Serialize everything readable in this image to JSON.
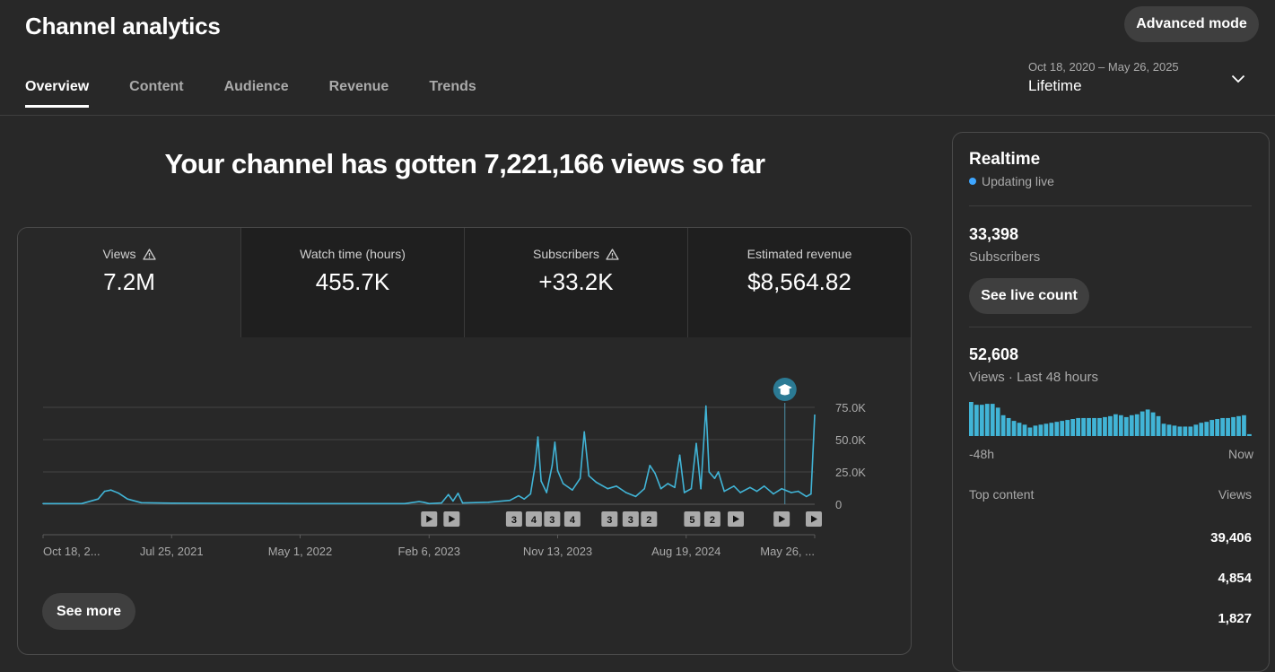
{
  "header": {
    "title": "Channel analytics",
    "advanced_mode_label": "Advanced mode",
    "tabs": [
      {
        "label": "Overview",
        "active": true
      },
      {
        "label": "Content",
        "active": false
      },
      {
        "label": "Audience",
        "active": false
      },
      {
        "label": "Revenue",
        "active": false
      },
      {
        "label": "Trends",
        "active": false
      }
    ],
    "date_range": {
      "range": "Oct 18, 2020 – May 26, 2025",
      "label": "Lifetime"
    }
  },
  "headline": "Your channel has gotten 7,221,166 views so far",
  "metrics": [
    {
      "label": "Views",
      "value": "7.2M",
      "warning": true,
      "active": true
    },
    {
      "label": "Watch time (hours)",
      "value": "455.7K",
      "warning": false,
      "active": false
    },
    {
      "label": "Subscribers",
      "value": "+33.2K",
      "warning": true,
      "active": false
    },
    {
      "label": "Estimated revenue",
      "value": "$8,564.82",
      "warning": false,
      "active": false
    }
  ],
  "see_more_label": "See more",
  "colors": {
    "line": "#3ea6ff",
    "chart_line": "#41b4d6",
    "background": "#282828",
    "button": "#3f3f3f"
  },
  "chart_data": {
    "type": "line",
    "title": "",
    "xlabel": "",
    "ylabel": "",
    "x_range": [
      "2020-10-18",
      "2025-05-26"
    ],
    "ylim": [
      0,
      75000
    ],
    "y_ticks": [
      "75.0K",
      "50.0K",
      "25.0K",
      "0"
    ],
    "x_ticks": [
      {
        "date": "2020-10-18",
        "label": "Oct 18, 2..."
      },
      {
        "date": "2021-07-25",
        "label": "Jul 25, 2021"
      },
      {
        "date": "2022-05-01",
        "label": "May 1, 2022"
      },
      {
        "date": "2023-02-06",
        "label": "Feb 6, 2023"
      },
      {
        "date": "2023-11-13",
        "label": "Nov 13, 2023"
      },
      {
        "date": "2024-08-19",
        "label": "Aug 19, 2024"
      },
      {
        "date": "2025-05-26",
        "label": "May 26, ..."
      }
    ],
    "grid": true,
    "series": [
      {
        "values": [
          {
            "x": "2020-10-18",
            "y": 500
          },
          {
            "x": "2021-01-10",
            "y": 500
          },
          {
            "x": "2021-02-15",
            "y": 4000
          },
          {
            "x": "2021-03-01",
            "y": 10000
          },
          {
            "x": "2021-03-15",
            "y": 11000
          },
          {
            "x": "2021-04-01",
            "y": 8500
          },
          {
            "x": "2021-04-20",
            "y": 4000
          },
          {
            "x": "2021-05-20",
            "y": 1200
          },
          {
            "x": "2021-07-25",
            "y": 800
          },
          {
            "x": "2022-05-01",
            "y": 500
          },
          {
            "x": "2022-12-15",
            "y": 500
          },
          {
            "x": "2023-01-15",
            "y": 2000
          },
          {
            "x": "2023-01-25",
            "y": 1500
          },
          {
            "x": "2023-02-06",
            "y": 500
          },
          {
            "x": "2023-03-05",
            "y": 1000
          },
          {
            "x": "2023-03-20",
            "y": 7500
          },
          {
            "x": "2023-03-30",
            "y": 2500
          },
          {
            "x": "2023-04-10",
            "y": 8500
          },
          {
            "x": "2023-04-20",
            "y": 1000
          },
          {
            "x": "2023-06-15",
            "y": 1500
          },
          {
            "x": "2023-08-01",
            "y": 3000
          },
          {
            "x": "2023-08-20",
            "y": 6500
          },
          {
            "x": "2023-09-01",
            "y": 4000
          },
          {
            "x": "2023-09-15",
            "y": 8000
          },
          {
            "x": "2023-09-25",
            "y": 30000
          },
          {
            "x": "2023-10-01",
            "y": 52000
          },
          {
            "x": "2023-10-08",
            "y": 18000
          },
          {
            "x": "2023-10-20",
            "y": 9000
          },
          {
            "x": "2023-11-01",
            "y": 30000
          },
          {
            "x": "2023-11-07",
            "y": 48000
          },
          {
            "x": "2023-11-13",
            "y": 26000
          },
          {
            "x": "2023-11-25",
            "y": 16000
          },
          {
            "x": "2023-12-15",
            "y": 11000
          },
          {
            "x": "2024-01-01",
            "y": 20000
          },
          {
            "x": "2024-01-10",
            "y": 56000
          },
          {
            "x": "2024-01-20",
            "y": 22000
          },
          {
            "x": "2024-02-05",
            "y": 17000
          },
          {
            "x": "2024-03-01",
            "y": 12000
          },
          {
            "x": "2024-03-20",
            "y": 14000
          },
          {
            "x": "2024-04-10",
            "y": 9000
          },
          {
            "x": "2024-05-01",
            "y": 6000
          },
          {
            "x": "2024-05-20",
            "y": 12000
          },
          {
            "x": "2024-06-01",
            "y": 30000
          },
          {
            "x": "2024-06-12",
            "y": 24000
          },
          {
            "x": "2024-06-25",
            "y": 12000
          },
          {
            "x": "2024-07-10",
            "y": 16000
          },
          {
            "x": "2024-07-25",
            "y": 13000
          },
          {
            "x": "2024-08-05",
            "y": 38000
          },
          {
            "x": "2024-08-15",
            "y": 9000
          },
          {
            "x": "2024-08-30",
            "y": 12000
          },
          {
            "x": "2024-09-10",
            "y": 47000
          },
          {
            "x": "2024-09-20",
            "y": 12000
          },
          {
            "x": "2024-10-01",
            "y": 76000
          },
          {
            "x": "2024-10-08",
            "y": 25000
          },
          {
            "x": "2024-10-20",
            "y": 20000
          },
          {
            "x": "2024-10-28",
            "y": 25000
          },
          {
            "x": "2024-11-10",
            "y": 10000
          },
          {
            "x": "2024-12-01",
            "y": 14000
          },
          {
            "x": "2024-12-15",
            "y": 9000
          },
          {
            "x": "2025-01-05",
            "y": 13000
          },
          {
            "x": "2025-01-20",
            "y": 10000
          },
          {
            "x": "2025-02-05",
            "y": 14000
          },
          {
            "x": "2025-02-25",
            "y": 8000
          },
          {
            "x": "2025-03-15",
            "y": 12000
          },
          {
            "x": "2025-04-05",
            "y": 9000
          },
          {
            "x": "2025-04-20",
            "y": 10000
          },
          {
            "x": "2025-05-08",
            "y": 6000
          },
          {
            "x": "2025-05-18",
            "y": 8000
          },
          {
            "x": "2025-05-26",
            "y": 69000
          }
        ]
      }
    ]
  },
  "video_markers": [
    {
      "date": "2023-02-06",
      "label": ""
    },
    {
      "date": "2023-03-27",
      "label": ""
    },
    {
      "date": "2023-08-10",
      "label": "3"
    },
    {
      "date": "2023-09-22",
      "label": "4"
    },
    {
      "date": "2023-11-01",
      "label": "3"
    },
    {
      "date": "2023-12-15",
      "label": "4"
    },
    {
      "date": "2024-03-05",
      "label": "3"
    },
    {
      "date": "2024-04-20",
      "label": "3"
    },
    {
      "date": "2024-05-30",
      "label": "2"
    },
    {
      "date": "2024-09-01",
      "label": "5"
    },
    {
      "date": "2024-10-15",
      "label": "2"
    },
    {
      "date": "2024-12-05",
      "label": ""
    },
    {
      "date": "2025-03-15",
      "label": ""
    },
    {
      "date": "2025-05-26",
      "label": ""
    }
  ],
  "milestone_marker": {
    "date": "2025-03-22"
  },
  "realtime": {
    "title": "Realtime",
    "status": "Updating live",
    "subscribers_value": "33,398",
    "subscribers_label": "Subscribers",
    "live_count_label": "See live count",
    "views_value": "52,608",
    "views_label": "Views · Last 48 hours",
    "axis_start": "-48h",
    "axis_end": "Now",
    "bars": [
      36,
      33,
      33,
      34,
      34,
      30,
      22,
      19,
      16,
      14,
      12,
      9,
      11,
      12,
      13,
      14,
      15,
      16,
      17,
      18,
      19,
      19,
      19,
      19,
      19,
      20,
      21,
      23,
      22,
      20,
      22,
      23,
      26,
      28,
      25,
      21,
      13,
      12,
      11,
      10,
      10,
      10,
      12,
      14,
      15,
      17,
      18,
      19,
      19,
      20,
      21,
      22,
      2
    ],
    "top_content_label": "Top content",
    "top_views_label": "Views",
    "top_content": [
      {
        "views": "39,406"
      },
      {
        "views": "4,854"
      },
      {
        "views": "1,827"
      }
    ]
  }
}
